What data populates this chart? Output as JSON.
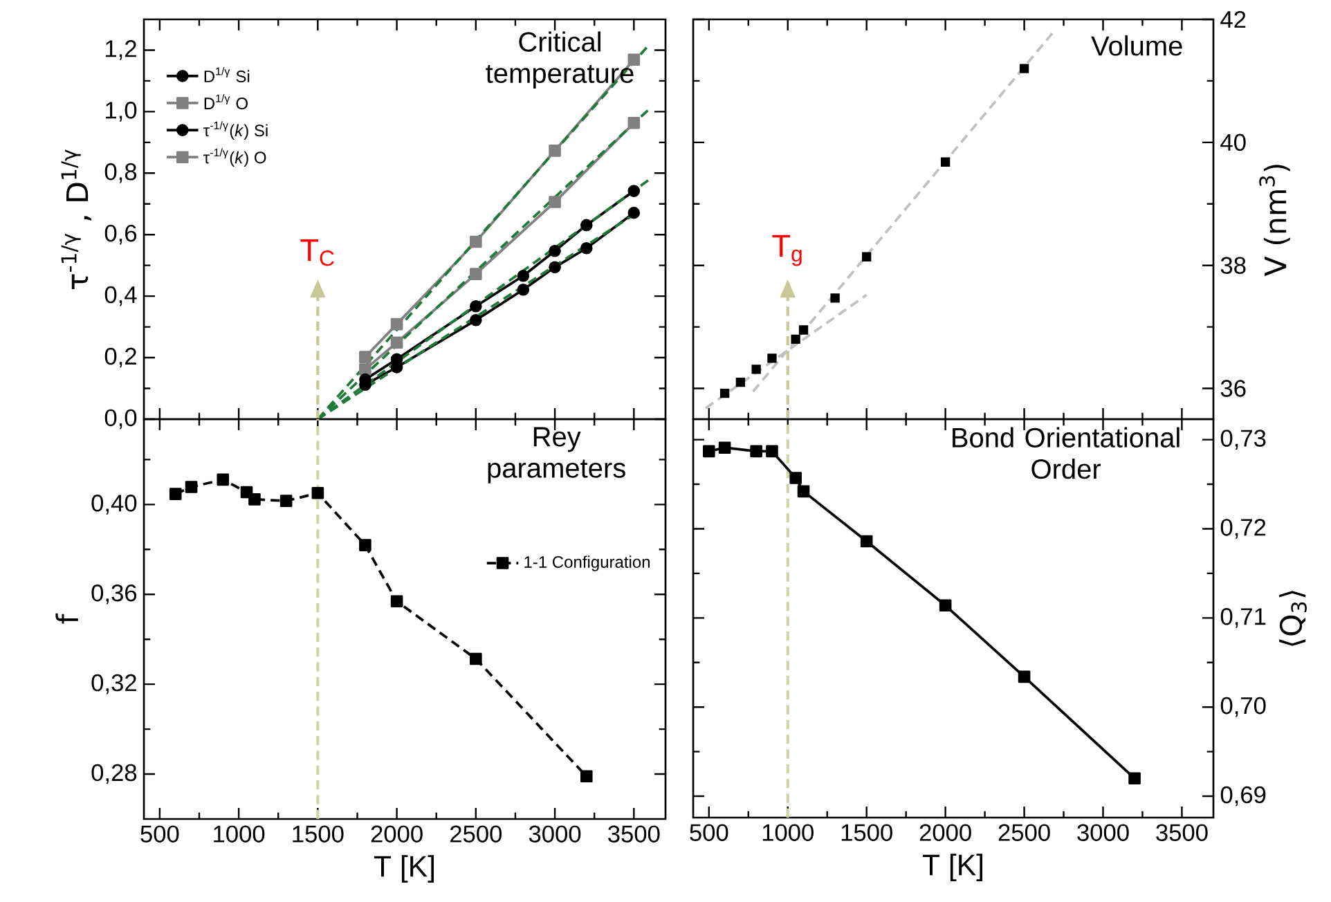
{
  "chart_data": [
    {
      "type": "line",
      "title": "Critical temperature",
      "ylabel": "τ$^{-1/γ}$ , D$^{1/γ}$",
      "legend": "top left",
      "tick_labels": "y",
      "xlim": [
        400,
        3700
      ],
      "xticks": [
        500,
        {
          "value": 750,
          "label": null
        },
        1000,
        {
          "value": 1250,
          "label": null
        },
        1500,
        {
          "value": 1750,
          "label": null
        },
        2000,
        {
          "value": 2250,
          "label": null
        },
        2500,
        {
          "value": 2750,
          "label": null
        },
        3000,
        {
          "value": 3250,
          "label": null
        },
        3500
      ],
      "ylim": [
        0,
        1.3
      ],
      "yticks": [
        {
          "value": 0,
          "label": "0,0"
        },
        {
          "value": 0.1,
          "label": null
        },
        {
          "value": 0.2,
          "label": "0,2"
        },
        {
          "value": 0.3,
          "label": null
        },
        {
          "value": 0.4,
          "label": "0,4"
        },
        {
          "value": 0.5,
          "label": null
        },
        {
          "value": 0.6,
          "label": "0,6"
        },
        {
          "value": 0.7,
          "label": null
        },
        {
          "value": 0.8,
          "label": "0,8"
        },
        {
          "value": 0.9,
          "label": null
        },
        {
          "value": 1.0,
          "label": "1,0"
        },
        {
          "value": 1.1,
          "label": null
        },
        {
          "value": 1.2,
          "label": "1,2"
        }
      ],
      "ref_lines": [
        {
          "axis": "x",
          "value": 1500,
          "label": "T$_{C}$",
          "color": "#c8c896",
          "line_style": "dashed"
        }
      ],
      "series": [
        {
          "name": "D$^{1/γ}$ Si",
          "color": "#000000",
          "marker": "circle",
          "x": [
            1800,
            2000,
            2500,
            2800,
            3000,
            3200,
            3500
          ],
          "values": [
            0.112,
            0.169,
            0.322,
            0.421,
            0.494,
            0.556,
            0.671
          ]
        },
        {
          "name": "D$^{1/γ}$ O",
          "color": "#808080",
          "marker": "square",
          "x": [
            1800,
            2000,
            2500,
            3000,
            3500
          ],
          "values": [
            0.162,
            0.249,
            0.472,
            0.706,
            0.963
          ]
        },
        {
          "name": "τ$^{-1/γ}$(*k*) Si",
          "color": "#000000",
          "marker": "circle",
          "x": [
            1800,
            2000,
            2500,
            2800,
            3000,
            3200,
            3500
          ],
          "values": [
            0.129,
            0.195,
            0.367,
            0.466,
            0.547,
            0.631,
            0.742
          ]
        },
        {
          "name": "τ$^{-1/γ}$(*k*) O",
          "color": "#808080",
          "marker": "square",
          "x": [
            1800,
            2000,
            2500,
            3000,
            3500
          ],
          "values": [
            0.202,
            0.309,
            0.577,
            0.873,
            1.169
          ]
        },
        {
          "color": "#1f7a3a",
          "line_style": "dashed",
          "marker": "none",
          "x": [
            1500,
            3500
          ],
          "values": [
            0,
            0.665
          ]
        },
        {
          "color": "#1f7a3a",
          "line_style": "dashed",
          "marker": "none",
          "x": [
            1500,
            3600
          ],
          "values": [
            0,
            0.78
          ]
        },
        {
          "color": "#1f7a3a",
          "line_style": "dashed",
          "marker": "none",
          "x": [
            1500,
            3600
          ],
          "values": [
            0,
            1.01
          ]
        },
        {
          "color": "#1f7a3a",
          "line_style": "dashed",
          "marker": "none",
          "x": [
            1500,
            3600
          ],
          "values": [
            0,
            1.22
          ]
        }
      ]
    },
    {
      "type": "scatter",
      "title": "Volume",
      "y2label": "V (nm$^{3}$)",
      "tick_labels": "y",
      "marker": "square",
      "xlim": [
        400,
        3700
      ],
      "xticks": [
        500,
        {
          "value": 750,
          "label": null
        },
        1000,
        {
          "value": 1250,
          "label": null
        },
        1500,
        {
          "value": 1750,
          "label": null
        },
        2000,
        {
          "value": 2250,
          "label": null
        },
        2500,
        {
          "value": 2750,
          "label": null
        },
        3000,
        {
          "value": 3250,
          "label": null
        },
        3500
      ],
      "y2lim": [
        35.5,
        42
      ],
      "y2ticks": [
        36,
        {
          "value": 37,
          "label": null
        },
        38,
        {
          "value": 39,
          "label": null
        },
        40,
        {
          "value": 41,
          "label": null
        },
        42
      ],
      "ref_lines": [
        {
          "axis": "x",
          "value": 1000,
          "label": "T$_{g}$",
          "color": "#c8c896",
          "line_style": "dashed"
        }
      ],
      "series": [
        {
          "color": "#000000",
          "axis": "y2",
          "x": [
            600,
            700,
            800,
            900,
            1050,
            1100,
            1300,
            1500,
            2000,
            2500
          ],
          "values": [
            35.92,
            36.1,
            36.31,
            36.49,
            36.8,
            36.95,
            37.47,
            38.14,
            39.68,
            41.2
          ]
        },
        {
          "type": "line",
          "color": "#c0c0c0",
          "axis": "y2",
          "marker": "none",
          "line_style": "dashed",
          "x": [
            480,
            1500
          ],
          "values": [
            35.68,
            37.52
          ]
        },
        {
          "type": "line",
          "color": "#c0c0c0",
          "axis": "y2",
          "marker": "none",
          "line_style": "dashed",
          "x": [
            780,
            2700
          ],
          "values": [
            35.95,
            41.84
          ]
        }
      ]
    },
    {
      "type": "line",
      "title": "Rey parameters",
      "xlabel": "T [K]",
      "ylabel": "f",
      "legend": "right",
      "marker": "square",
      "line_style": "dashed",
      "xlim": [
        400,
        3700
      ],
      "xticks": [
        500,
        {
          "value": 750,
          "label": null
        },
        1000,
        {
          "value": 1250,
          "label": null
        },
        1500,
        {
          "value": 1750,
          "label": null
        },
        2000,
        {
          "value": 2250,
          "label": null
        },
        2500,
        {
          "value": 2750,
          "label": null
        },
        3000,
        {
          "value": 3250,
          "label": null
        },
        3500
      ],
      "ylim": [
        0.26,
        0.438
      ],
      "yticks": [
        {
          "value": 0.28,
          "label": "0,28"
        },
        {
          "value": 0.3,
          "label": null
        },
        {
          "value": 0.32,
          "label": "0,32"
        },
        {
          "value": 0.34,
          "label": null
        },
        {
          "value": 0.36,
          "label": "0,36"
        },
        {
          "value": 0.38,
          "label": null
        },
        {
          "value": 0.4,
          "label": "0,40"
        },
        {
          "value": 0.42,
          "label": null
        }
      ],
      "ref_lines": [
        {
          "axis": "x",
          "value": 1500,
          "color": "#d2d2a0",
          "line_style": "dashed"
        }
      ],
      "series": [
        {
          "name": "1-1 Configuration",
          "color": "#000000",
          "x": [
            600,
            700,
            900,
            1050,
            1100,
            1300,
            1500,
            1800,
            2000,
            2500,
            3200
          ],
          "values": [
            0.4047,
            0.4078,
            0.4111,
            0.4055,
            0.4023,
            0.4016,
            0.4051,
            0.3819,
            0.3569,
            0.3313,
            0.279
          ]
        }
      ]
    },
    {
      "type": "line",
      "title": "Bond Orientational Order",
      "xlabel": "T [K]",
      "y2label": "⟨Q$_{3}$⟩",
      "marker": "square",
      "xlim": [
        400,
        3700
      ],
      "xticks": [
        500,
        {
          "value": 750,
          "label": null
        },
        1000,
        {
          "value": 1250,
          "label": null
        },
        1500,
        {
          "value": 1750,
          "label": null
        },
        2000,
        {
          "value": 2250,
          "label": null
        },
        2500,
        {
          "value": 2750,
          "label": null
        },
        3000,
        {
          "value": 3250,
          "label": null
        },
        3500
      ],
      "y2lim": [
        0.6876,
        0.7323
      ],
      "y2ticks": [
        {
          "value": 0.69,
          "label": "0,69"
        },
        {
          "value": 0.695,
          "label": null
        },
        {
          "value": 0.7,
          "label": "0,70"
        },
        {
          "value": 0.705,
          "label": null
        },
        {
          "value": 0.71,
          "label": "0,71"
        },
        {
          "value": 0.715,
          "label": null
        },
        {
          "value": 0.72,
          "label": "0,72"
        },
        {
          "value": 0.725,
          "label": null
        },
        {
          "value": 0.73,
          "label": "0,73"
        }
      ],
      "ref_lines": [
        {
          "axis": "x",
          "value": 1000,
          "color": "#d2d2a0",
          "line_style": "dashed"
        }
      ],
      "series": [
        {
          "color": "#000000",
          "axis": "y2",
          "x": [
            500,
            600,
            800,
            900,
            1050,
            1100,
            1500,
            2000,
            2500,
            3200
          ],
          "values": [
            0.7287,
            0.7291,
            0.7287,
            0.7287,
            0.7257,
            0.7242,
            0.7186,
            0.7114,
            0.7034,
            0.692
          ]
        }
      ]
    }
  ]
}
